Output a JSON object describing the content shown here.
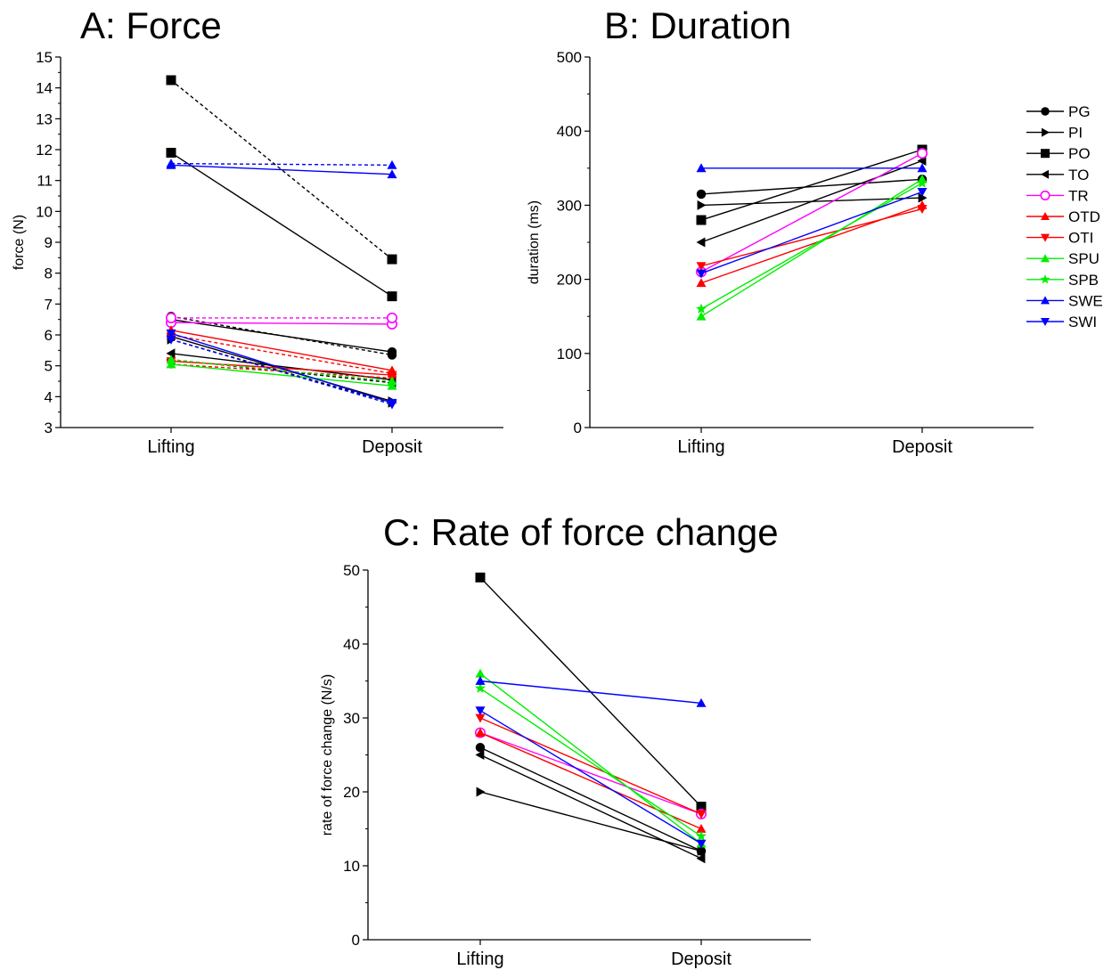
{
  "legend": {
    "placement": "right of panel B",
    "entries": [
      {
        "name": "PG",
        "color": "#000000",
        "marker": "circle"
      },
      {
        "name": "PI",
        "color": "#000000",
        "marker": "triangle-right"
      },
      {
        "name": "PO",
        "color": "#000000",
        "marker": "square"
      },
      {
        "name": "TO",
        "color": "#000000",
        "marker": "triangle-left"
      },
      {
        "name": "TR",
        "color": "#ff00ff",
        "marker": "circle-open"
      },
      {
        "name": "OTD",
        "color": "#ff0000",
        "marker": "triangle-up"
      },
      {
        "name": "OTI",
        "color": "#ff0000",
        "marker": "triangle-down"
      },
      {
        "name": "SPU",
        "color": "#00ee00",
        "marker": "triangle-up"
      },
      {
        "name": "SPB",
        "color": "#00ee00",
        "marker": "star"
      },
      {
        "name": "SWE",
        "color": "#0000ff",
        "marker": "triangle-up"
      },
      {
        "name": "SWI",
        "color": "#0000ff",
        "marker": "triangle-down"
      }
    ]
  },
  "chart_data": [
    {
      "type": "line",
      "title": "A: Force",
      "xlabel": "",
      "ylabel": "force (N)",
      "categories": [
        "Lifting",
        "Deposit"
      ],
      "ylim": [
        3,
        15
      ],
      "yticks": [
        3,
        4,
        5,
        6,
        7,
        8,
        9,
        10,
        11,
        12,
        13,
        14,
        15
      ],
      "grid": false,
      "series": [
        {
          "name": "PG",
          "style": "solid",
          "values": [
            6.5,
            5.45
          ]
        },
        {
          "name": "PG",
          "style": "dashed",
          "values": [
            6.6,
            5.35
          ]
        },
        {
          "name": "PI",
          "style": "solid",
          "values": [
            5.95,
            3.85
          ]
        },
        {
          "name": "PI",
          "style": "dashed",
          "values": [
            5.85,
            3.8
          ]
        },
        {
          "name": "PO",
          "style": "solid",
          "values": [
            11.9,
            7.25
          ]
        },
        {
          "name": "PO",
          "style": "dashed",
          "values": [
            14.25,
            8.45
          ]
        },
        {
          "name": "TO",
          "style": "solid",
          "values": [
            5.4,
            4.55
          ]
        },
        {
          "name": "TO",
          "style": "dashed",
          "values": [
            5.2,
            4.45
          ]
        },
        {
          "name": "TR",
          "style": "solid",
          "values": [
            6.4,
            6.35
          ]
        },
        {
          "name": "TR",
          "style": "dashed",
          "values": [
            6.55,
            6.55
          ]
        },
        {
          "name": "OTD",
          "style": "solid",
          "values": [
            6.15,
            4.85
          ]
        },
        {
          "name": "OTD",
          "style": "dashed",
          "values": [
            6.0,
            4.75
          ]
        },
        {
          "name": "OTI",
          "style": "solid",
          "values": [
            5.15,
            4.7
          ]
        },
        {
          "name": "OTI",
          "style": "dashed",
          "values": [
            5.05,
            4.6
          ]
        },
        {
          "name": "SPU",
          "style": "solid",
          "values": [
            5.05,
            4.35
          ]
        },
        {
          "name": "SPU",
          "style": "dashed",
          "values": [
            5.2,
            4.5
          ]
        },
        {
          "name": "SWE",
          "style": "solid",
          "values": [
            11.5,
            11.2
          ]
        },
        {
          "name": "SWE",
          "style": "dashed",
          "values": [
            11.55,
            11.5
          ]
        },
        {
          "name": "SWI",
          "style": "solid",
          "values": [
            6.05,
            3.8
          ]
        },
        {
          "name": "SWI",
          "style": "dashed",
          "values": [
            5.85,
            3.75
          ]
        }
      ]
    },
    {
      "type": "line",
      "title": "B: Duration",
      "xlabel": "",
      "ylabel": "duration (ms)",
      "categories": [
        "Lifting",
        "Deposit"
      ],
      "ylim": [
        0,
        500
      ],
      "yticks": [
        0,
        100,
        200,
        300,
        400,
        500
      ],
      "grid": false,
      "series": [
        {
          "name": "PG",
          "values": [
            315,
            335
          ]
        },
        {
          "name": "PI",
          "values": [
            300,
            310
          ]
        },
        {
          "name": "PO",
          "values": [
            280,
            375
          ]
        },
        {
          "name": "TO",
          "values": [
            250,
            360
          ]
        },
        {
          "name": "TR",
          "values": [
            210,
            370
          ]
        },
        {
          "name": "OTD",
          "values": [
            195,
            300
          ]
        },
        {
          "name": "OTI",
          "values": [
            218,
            295
          ]
        },
        {
          "name": "SPU",
          "values": [
            150,
            335
          ]
        },
        {
          "name": "SPB",
          "values": [
            160,
            330
          ]
        },
        {
          "name": "SWE",
          "values": [
            350,
            350
          ]
        },
        {
          "name": "SWI",
          "values": [
            208,
            318
          ]
        }
      ]
    },
    {
      "type": "line",
      "title": "C: Rate of force change",
      "xlabel": "",
      "ylabel": "rate of force change (N/s)",
      "categories": [
        "Lifting",
        "Deposit"
      ],
      "ylim": [
        0,
        50
      ],
      "yticks": [
        0,
        10,
        20,
        30,
        40,
        50
      ],
      "grid": false,
      "series": [
        {
          "name": "PG",
          "values": [
            26,
            12
          ]
        },
        {
          "name": "PI",
          "values": [
            20,
            12
          ]
        },
        {
          "name": "PO",
          "values": [
            49,
            18
          ]
        },
        {
          "name": "TO",
          "values": [
            25,
            11
          ]
        },
        {
          "name": "TR",
          "values": [
            28,
            17
          ]
        },
        {
          "name": "OTD",
          "values": [
            28,
            15
          ]
        },
        {
          "name": "OTI",
          "values": [
            30,
            17
          ]
        },
        {
          "name": "SPU",
          "values": [
            36,
            13
          ]
        },
        {
          "name": "SPB",
          "values": [
            34,
            14
          ]
        },
        {
          "name": "SWE",
          "values": [
            35,
            32
          ]
        },
        {
          "name": "SWI",
          "values": [
            31,
            13
          ]
        }
      ]
    }
  ]
}
